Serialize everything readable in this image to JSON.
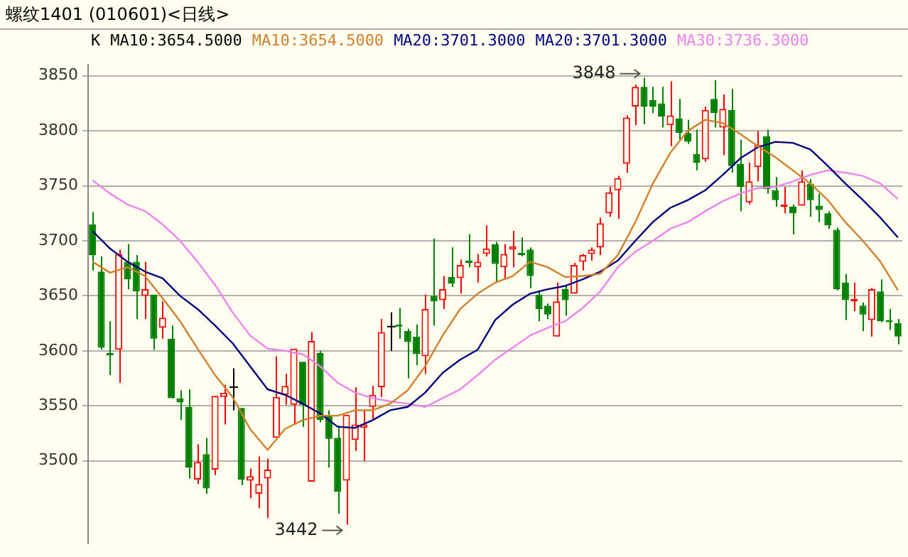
{
  "chart_data": {
    "type": "candlestick",
    "title": "螺纹1401 (010601)<日线>",
    "categories": [
      null,
      null,
      null,
      null,
      null,
      null,
      null,
      null,
      null,
      null,
      null,
      null,
      null,
      null,
      null,
      null,
      null,
      null,
      null,
      null,
      null,
      null,
      null,
      null,
      null,
      null,
      null,
      null,
      null,
      null,
      null,
      null,
      null,
      null,
      null,
      null,
      null,
      null,
      null,
      null,
      null,
      null,
      null,
      null,
      null,
      null,
      null,
      null,
      null,
      null,
      null,
      null,
      null,
      null,
      null,
      null,
      null,
      null,
      null,
      null,
      null,
      null,
      null,
      null,
      null,
      null,
      null,
      null,
      null,
      null,
      null,
      null,
      null,
      null,
      null,
      null,
      null,
      null,
      null,
      null,
      null,
      null,
      null,
      null,
      null,
      null,
      null,
      null,
      null,
      null,
      null,
      null,
      null
    ],
    "ylim": [
      3425,
      3860
    ],
    "yticks": [
      3500,
      3550,
      3600,
      3650,
      3700,
      3750,
      3800,
      3850
    ],
    "grid": "y",
    "legend": "top left",
    "series": [
      {
        "name": "K",
        "ohlc": [
          [
            3715,
            3726,
            3673,
            3687
          ],
          [
            3672,
            3686,
            3601,
            3603
          ],
          [
            3598,
            3627,
            3578,
            3596
          ],
          [
            3601,
            3692,
            3571,
            3688
          ],
          [
            3681,
            3697,
            3656,
            3665
          ],
          [
            3681,
            3687,
            3629,
            3654
          ],
          [
            3650,
            3681,
            3629,
            3656
          ],
          [
            3651,
            3651,
            3601,
            3611
          ],
          [
            3621,
            3645,
            3611,
            3630
          ],
          [
            3611,
            3623,
            3557,
            3557
          ],
          [
            3557,
            3564,
            3537,
            3553
          ],
          [
            3549,
            3565,
            3484,
            3494
          ],
          [
            3483,
            3515,
            3479,
            3499
          ],
          [
            3506,
            3521,
            3470,
            3475
          ],
          [
            3492,
            3559,
            3487,
            3559
          ],
          [
            3558,
            3569,
            3533,
            3562
          ],
          [
            3567,
            3584,
            3546,
            3567
          ],
          [
            3548,
            3548,
            3478,
            3483
          ],
          [
            3482,
            3493,
            3466,
            3486
          ],
          [
            3470,
            3504,
            3457,
            3479
          ],
          [
            3484,
            3502,
            3448,
            3492
          ],
          [
            3521,
            3595,
            3521,
            3558
          ],
          [
            3560,
            3579,
            3551,
            3568
          ],
          [
            3551,
            3602,
            3533,
            3602
          ],
          [
            3590,
            3590,
            3531,
            3551
          ],
          [
            3481,
            3617,
            3481,
            3609
          ],
          [
            3598,
            3600,
            3535,
            3537
          ],
          [
            3542,
            3546,
            3494,
            3520
          ],
          [
            3521,
            3532,
            3452,
            3472
          ],
          [
            3482,
            3542,
            3442,
            3542
          ],
          [
            3519,
            3567,
            3509,
            3533
          ],
          [
            3530,
            3546,
            3500,
            3533
          ],
          [
            3549,
            3568,
            3537,
            3560
          ],
          [
            3567,
            3629,
            3558,
            3617
          ],
          [
            3622,
            3635,
            3600,
            3622
          ],
          [
            3624,
            3639,
            3611,
            3622
          ],
          [
            3618,
            3620,
            3575,
            3608
          ],
          [
            3613,
            3624,
            3587,
            3597
          ],
          [
            3595,
            3651,
            3579,
            3638
          ],
          [
            3650,
            3702,
            3623,
            3645
          ],
          [
            3646,
            3668,
            3638,
            3656
          ],
          [
            3667,
            3694,
            3658,
            3661
          ],
          [
            3666,
            3683,
            3652,
            3678
          ],
          [
            3682,
            3706,
            3676,
            3680
          ],
          [
            3676,
            3688,
            3662,
            3681
          ],
          [
            3688,
            3714,
            3686,
            3693
          ],
          [
            3697,
            3699,
            3662,
            3679
          ],
          [
            3676,
            3697,
            3665,
            3688
          ],
          [
            3692,
            3709,
            3676,
            3695
          ],
          [
            3689,
            3703,
            3686,
            3687
          ],
          [
            3692,
            3694,
            3657,
            3668
          ],
          [
            3651,
            3654,
            3627,
            3638
          ],
          [
            3641,
            3643,
            3629,
            3633
          ],
          [
            3613,
            3662,
            3613,
            3645
          ],
          [
            3656,
            3660,
            3632,
            3646
          ],
          [
            3652,
            3680,
            3652,
            3678
          ],
          [
            3681,
            3688,
            3673,
            3687
          ],
          [
            3688,
            3694,
            3682,
            3692
          ],
          [
            3694,
            3721,
            3687,
            3716
          ],
          [
            3725,
            3749,
            3722,
            3744
          ],
          [
            3746,
            3759,
            3720,
            3757
          ],
          [
            3770,
            3814,
            3762,
            3812
          ],
          [
            3822,
            3842,
            3805,
            3840
          ],
          [
            3840,
            3848,
            3806,
            3822
          ],
          [
            3828,
            3840,
            3816,
            3822
          ],
          [
            3825,
            3840,
            3803,
            3813
          ],
          [
            3805,
            3845,
            3786,
            3814
          ],
          [
            3811,
            3829,
            3792,
            3798
          ],
          [
            3798,
            3810,
            3788,
            3790
          ],
          [
            3779,
            3801,
            3764,
            3771
          ],
          [
            3774,
            3822,
            3772,
            3819
          ],
          [
            3829,
            3846,
            3803,
            3816
          ],
          [
            3803,
            3833,
            3778,
            3820
          ],
          [
            3819,
            3838,
            3762,
            3768
          ],
          [
            3770,
            3792,
            3727,
            3749
          ],
          [
            3735,
            3771,
            3733,
            3754
          ],
          [
            3767,
            3800,
            3754,
            3787
          ],
          [
            3795,
            3801,
            3743,
            3747
          ],
          [
            3746,
            3758,
            3731,
            3737
          ],
          [
            3731,
            3749,
            3725,
            3733
          ],
          [
            3731,
            3733,
            3706,
            3725
          ],
          [
            3732,
            3764,
            3732,
            3754
          ],
          [
            3752,
            3756,
            3722,
            3737
          ],
          [
            3732,
            3743,
            3717,
            3728
          ],
          [
            3725,
            3727,
            3711,
            3714
          ],
          [
            3710,
            3712,
            3655,
            3656
          ],
          [
            3662,
            3670,
            3628,
            3646
          ],
          [
            3645,
            3662,
            3636,
            3647
          ],
          [
            3641,
            3644,
            3618,
            3633
          ],
          [
            3628,
            3657,
            3613,
            3656
          ],
          [
            3654,
            3665,
            3626,
            3627
          ],
          [
            3628,
            3638,
            3619,
            3626
          ],
          [
            3625,
            3629,
            3606,
            3613
          ]
        ]
      },
      {
        "name": "MA10:3654.5000",
        "type": "line",
        "color": "#d2802e",
        "values": [
          3681,
          null,
          3671,
          null,
          3676,
          null,
          3668,
          null,
          3648,
          null,
          3627,
          null,
          3602,
          null,
          3578,
          null,
          3558,
          null,
          3529,
          null,
          3510,
          null,
          3529,
          null,
          3537,
          null,
          3541,
          null,
          3541,
          null,
          3546,
          null,
          3546,
          null,
          3552,
          null,
          3564,
          null,
          3586,
          null,
          3614,
          null,
          3638,
          null,
          3652,
          null,
          3662,
          null,
          3668,
          null,
          3681,
          null,
          3676,
          null,
          3667,
          null,
          3668,
          null,
          3670,
          null,
          3687,
          null,
          3717,
          null,
          3752,
          null,
          3780,
          null,
          3800,
          null,
          3810,
          null,
          3807,
          null,
          3797,
          null,
          3786,
          null,
          3776,
          null,
          3764,
          null,
          3752,
          null,
          3737,
          null,
          3717,
          null,
          3700,
          null,
          3681,
          null,
          3655
        ]
      },
      {
        "name": "MA20:3701.3000",
        "type": "line",
        "color": "#000080",
        "values": [
          3709,
          null,
          3693,
          null,
          3681,
          null,
          3672,
          null,
          3666,
          null,
          3650,
          null,
          3638,
          null,
          3623,
          null,
          3607,
          null,
          3586,
          null,
          3565,
          null,
          3560,
          null,
          3552,
          null,
          3543,
          null,
          3531,
          null,
          3530,
          null,
          3537,
          null,
          3546,
          null,
          3549,
          null,
          3562,
          null,
          3580,
          null,
          3592,
          null,
          3601,
          null,
          3628,
          null,
          3642,
          null,
          3652,
          null,
          3656,
          null,
          3659,
          null,
          3665,
          null,
          3672,
          null,
          3682,
          null,
          3700,
          null,
          3717,
          null,
          3730,
          null,
          3737,
          null,
          3746,
          null,
          3760,
          null,
          3775,
          null,
          3785,
          null,
          3790,
          null,
          3789,
          null,
          3783,
          null,
          3768,
          null,
          3752,
          null,
          3737,
          null,
          3721,
          null,
          3703
        ]
      },
      {
        "name": "MA30:3736.3000",
        "type": "line",
        "color": "#ee82ee",
        "values": [
          3755,
          null,
          3743,
          null,
          3733,
          null,
          3727,
          null,
          3715,
          null,
          3700,
          null,
          3681,
          null,
          3660,
          null,
          3635,
          null,
          3614,
          null,
          3602,
          null,
          3600,
          null,
          3597,
          null,
          3586,
          null,
          3571,
          null,
          3562,
          null,
          3557,
          null,
          3554,
          null,
          3552,
          null,
          3549,
          null,
          3557,
          null,
          3565,
          null,
          3578,
          null,
          3592,
          null,
          3603,
          null,
          3614,
          null,
          3621,
          null,
          3627,
          null,
          3639,
          null,
          3654,
          null,
          3676,
          null,
          3690,
          null,
          3700,
          null,
          3711,
          null,
          3717,
          null,
          3727,
          null,
          3736,
          null,
          3743,
          null,
          3748,
          null,
          3749,
          null,
          3754,
          null,
          3760,
          null,
          3764,
          null,
          3762,
          null,
          3759,
          null,
          3752,
          null,
          3738
        ]
      }
    ],
    "annotations": [
      "MA10:3654.5000",
      "MA20:3701.3000",
      "3442",
      "3848"
    ]
  }
}
